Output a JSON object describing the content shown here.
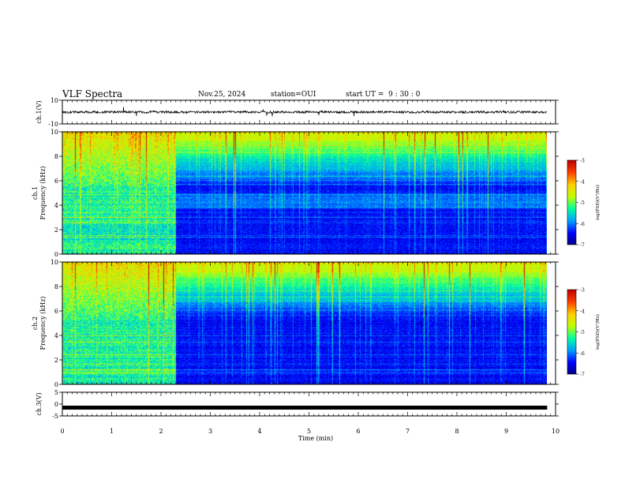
{
  "header": {
    "title": "VLF Spectra",
    "date": "Nov.25, 2024",
    "station": "station=OUI",
    "start": "start UT =  9 : 30 : 0"
  },
  "colorbar": {
    "label": "log(PSD)(V²/Hz)",
    "ticks": [
      "-3",
      "-4",
      "-5",
      "-6",
      "-7"
    ],
    "range": [
      -7,
      -3
    ],
    "colors": [
      "#000080",
      "#0000ff",
      "#00a0ff",
      "#00ffa0",
      "#c0ff00",
      "#ffd000",
      "#ff4000",
      "#c00000",
      "#ffffff"
    ]
  },
  "chart_data": [
    {
      "panel": "ch1-waveform",
      "type": "line",
      "ylabel": "ch.1(V)",
      "ylim": [
        -10,
        10
      ],
      "yticks": [
        "10",
        "-10"
      ],
      "xlim": [
        0,
        10
      ],
      "baseline": 0
    },
    {
      "panel": "ch1-spectrogram",
      "type": "heatmap",
      "ylabel": "ch.1 Frequency (kHz)",
      "ylim": [
        0,
        10
      ],
      "yticks": [
        "10",
        "8",
        "6",
        "4",
        "2",
        "0"
      ],
      "xlim": [
        0,
        10
      ],
      "data_end_min": 9.83,
      "change_at_min": 2.3,
      "cbar_ticks": [
        "-3",
        "-4",
        "-5",
        "-6",
        "-7"
      ],
      "cbar_label": "log(PSD)(V²/Hz)"
    },
    {
      "panel": "ch2-spectrogram",
      "type": "heatmap",
      "ylabel": "ch.2 Frequency (kHz)",
      "ylim": [
        0,
        10
      ],
      "yticks": [
        "10",
        "8",
        "6",
        "4",
        "2",
        "0"
      ],
      "xlim": [
        0,
        10
      ],
      "data_end_min": 9.83,
      "change_at_min": 2.3,
      "cbar_ticks": [
        "-3",
        "-4",
        "-5",
        "-6",
        "-7"
      ],
      "cbar_label": "log(PSD)(V²/Hz)"
    },
    {
      "panel": "ch3-waveform",
      "type": "line",
      "ylabel": "ch.3(V)",
      "ylim": [
        -5,
        5
      ],
      "yticks": [
        "5",
        "0",
        "-5"
      ],
      "xlim": [
        0,
        10
      ],
      "baseline": -1.5
    }
  ],
  "xaxis": {
    "label": "Time  (min)",
    "ticks": [
      "0",
      "1",
      "2",
      "3",
      "4",
      "5",
      "6",
      "7",
      "8",
      "9",
      "10"
    ]
  }
}
